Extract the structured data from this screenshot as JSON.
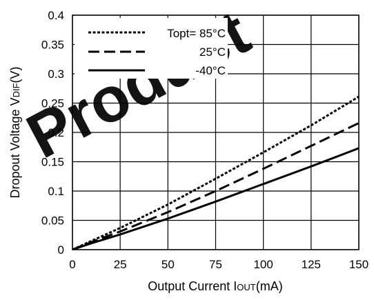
{
  "chart_data": {
    "type": "line",
    "xlabel_main": "Output Current I",
    "xlabel_sub": "OUT",
    "xlabel_unit": "(mA)",
    "ylabel_main": "Dropout Voltage V",
    "ylabel_sub": "DIF",
    "ylabel_unit": "(V)",
    "xlim": [
      0,
      150
    ],
    "ylim": [
      0,
      0.4
    ],
    "xticks": [
      0,
      25,
      50,
      75,
      100,
      125,
      150
    ],
    "xtick_labels": [
      "0",
      "25",
      "50",
      "75",
      "100",
      "125",
      "150"
    ],
    "yticks": [
      0,
      0.05,
      0.1,
      0.15,
      0.2,
      0.25,
      0.3,
      0.35,
      0.4
    ],
    "ytick_labels": [
      "0",
      "0.05",
      "0.1",
      "0.15",
      "0.2",
      "0.25",
      "0.3",
      "0.35",
      "0.4"
    ],
    "grid": true,
    "legend_position": "top-left",
    "watermark_text": "Product",
    "watermark_color": "#e0202a",
    "series": [
      {
        "name": "Topt= 85°C",
        "style": "dotted",
        "x": [
          0,
          10,
          25,
          50,
          75,
          100,
          125,
          150
        ],
        "y": [
          0,
          0.015,
          0.037,
          0.077,
          0.121,
          0.166,
          0.212,
          0.261
        ]
      },
      {
        "name": "25°C",
        "style": "dashed",
        "x": [
          0,
          10,
          25,
          50,
          75,
          100,
          125,
          150
        ],
        "y": [
          0,
          0.013,
          0.031,
          0.064,
          0.1,
          0.138,
          0.177,
          0.216
        ]
      },
      {
        "name": "-40°C",
        "style": "solid",
        "x": [
          0,
          10,
          25,
          50,
          75,
          100,
          125,
          150
        ],
        "y": [
          0,
          0.011,
          0.026,
          0.053,
          0.082,
          0.112,
          0.142,
          0.173
        ]
      }
    ]
  }
}
